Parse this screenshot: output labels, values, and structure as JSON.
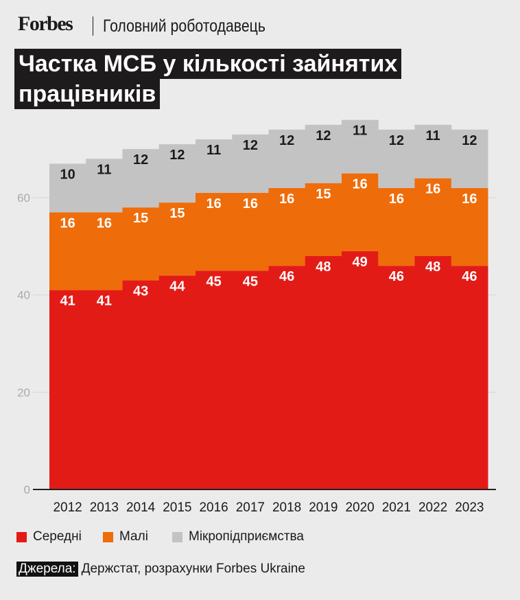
{
  "header": {
    "logo": "Forbes",
    "section": "Головний роботодавець"
  },
  "source": {
    "label": "Джерела:",
    "text": "Держстат, розрахунки Forbes Ukraine"
  },
  "chart_data": {
    "type": "bar",
    "stacked": true,
    "title_lines": [
      "Частка МСБ у кількості зайнятих",
      "працівників"
    ],
    "xlabel": "",
    "ylabel": "",
    "ylim": [
      0,
      75
    ],
    "yticks": [
      0,
      20,
      40,
      60
    ],
    "grid": true,
    "legend_position": "bottom-left",
    "categories": [
      "2012",
      "2013",
      "2014",
      "2015",
      "2016",
      "2017",
      "2018",
      "2019",
      "2020",
      "2021",
      "2022",
      "2023"
    ],
    "series": [
      {
        "name": "Середні",
        "color": "#e31b17",
        "values": [
          41,
          41,
          43,
          44,
          45,
          45,
          46,
          48,
          49,
          46,
          48,
          46
        ]
      },
      {
        "name": "Малі",
        "color": "#ef6c0a",
        "values": [
          16,
          16,
          15,
          15,
          16,
          16,
          16,
          15,
          16,
          16,
          16,
          16
        ]
      },
      {
        "name": "Мікропідприємства",
        "color": "#c3c3c3",
        "values": [
          10,
          11,
          12,
          12,
          11,
          12,
          12,
          12,
          11,
          12,
          11,
          12
        ]
      }
    ]
  }
}
